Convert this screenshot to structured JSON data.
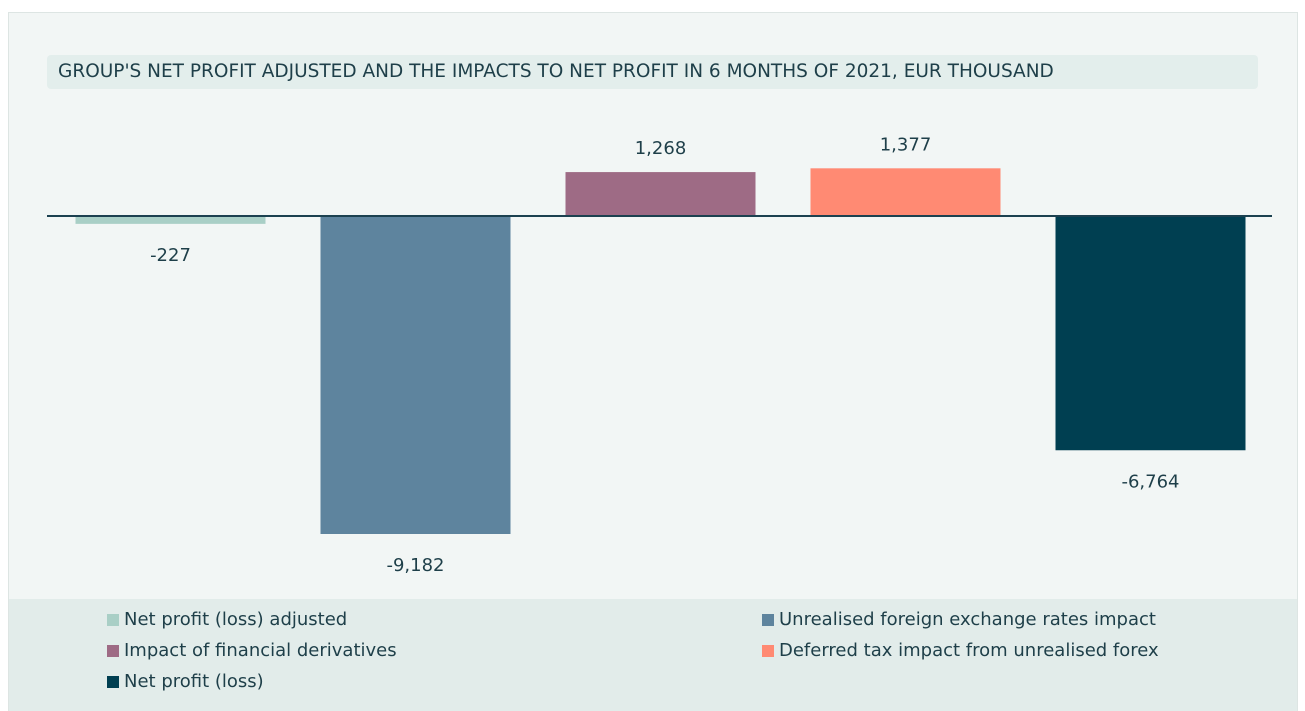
{
  "chart_data": {
    "type": "bar",
    "title": "GROUP'S NET PROFIT ADJUSTED AND THE IMPACTS TO NET PROFIT IN 6 MONTHS OF 2021, EUR THOUSAND",
    "categories": [
      "Net profit (loss) adjusted",
      "Unrealised foreign exchange rates impact",
      "Impact of financial derivatives",
      "Deferred tax impact from unrealised forex",
      "Net profit (loss)"
    ],
    "values": [
      -227,
      -9182,
      1268,
      1377,
      -6764
    ],
    "value_labels": [
      "-227",
      "-9,182",
      "1,268",
      "1,377",
      "-6,764"
    ],
    "colors": [
      "#a9cfc6",
      "#5e849e",
      "#9e6b85",
      "#ff8a73",
      "#003f51"
    ]
  }
}
